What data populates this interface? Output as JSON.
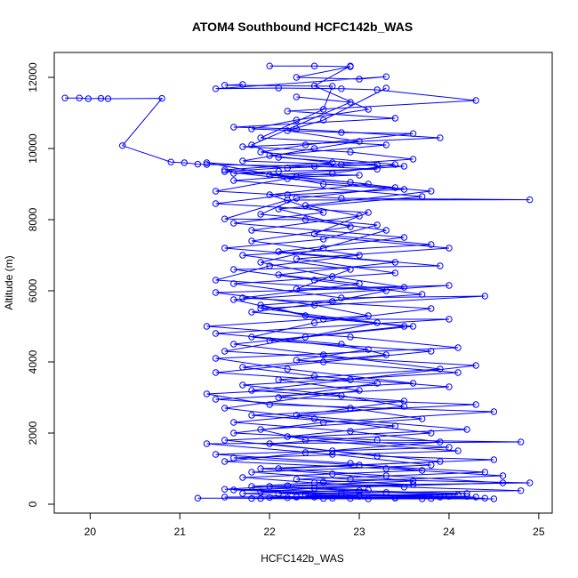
{
  "chart_data": {
    "type": "line",
    "title": "ATOM4 Southbound HCFC142b_WAS",
    "xlabel": "HCFC142b_WAS",
    "ylabel": "Altitude (m)",
    "xlim": [
      19.6,
      25.15
    ],
    "ylim": [
      -250,
      12700
    ],
    "xticks": [
      "20",
      "21",
      "22",
      "23",
      "24",
      "25"
    ],
    "yticks": [
      "0",
      "2000",
      "4000",
      "6000",
      "8000",
      "10000",
      "12000"
    ],
    "grid": false,
    "legend": "none",
    "series_color": "#0000ff",
    "marker": "open-circle",
    "series": [
      {
        "points": [
          [
            19.72,
            11420
          ],
          [
            19.88,
            11420
          ],
          [
            19.98,
            11400
          ],
          [
            20.12,
            11410
          ],
          [
            20.2,
            11400
          ],
          [
            20.8,
            11410
          ],
          [
            20.36,
            10080
          ],
          [
            20.9,
            9620
          ],
          [
            21.05,
            9600
          ],
          [
            21.2,
            9560
          ],
          [
            21.3,
            9550
          ],
          [
            22.5,
            9500
          ],
          [
            23.2,
            9420
          ],
          [
            22.1,
            9360
          ],
          [
            21.6,
            9300
          ],
          [
            23.0,
            9250
          ],
          [
            22.3,
            9200
          ],
          [
            21.4,
            8800
          ],
          [
            22.8,
            8600
          ],
          [
            24.9,
            8560
          ],
          [
            22.2,
            8550
          ],
          [
            21.5,
            8020
          ],
          [
            22.4,
            8000
          ],
          [
            23.3,
            7700
          ],
          [
            22.6,
            7200
          ],
          [
            21.9,
            6800
          ],
          [
            22.7,
            6400
          ],
          [
            23.5,
            6100
          ],
          [
            21.4,
            5950
          ],
          [
            22.5,
            5600
          ],
          [
            23.1,
            5300
          ],
          [
            21.3,
            5000
          ],
          [
            22.9,
            4700
          ],
          [
            24.1,
            4400
          ],
          [
            21.4,
            4100
          ],
          [
            22.2,
            3800
          ],
          [
            23.6,
            3400
          ],
          [
            21.3,
            3100
          ],
          [
            22.0,
            2800
          ],
          [
            24.5,
            2600
          ],
          [
            22.6,
            2300
          ],
          [
            21.6,
            2000
          ],
          [
            23.2,
            1800
          ],
          [
            24.8,
            1750
          ],
          [
            21.3,
            1700
          ],
          [
            22.7,
            1400
          ],
          [
            23.8,
            1100
          ],
          [
            21.8,
            900
          ],
          [
            22.9,
            700
          ],
          [
            24.9,
            600
          ],
          [
            22.0,
            500
          ],
          [
            23.1,
            400
          ],
          [
            21.7,
            300
          ],
          [
            22.3,
            200
          ],
          [
            23.4,
            180
          ],
          [
            24.5,
            150
          ],
          [
            21.2,
            170
          ],
          [
            22.6,
            160
          ],
          [
            23.9,
            200
          ]
        ]
      },
      {
        "points": [
          [
            22.0,
            12320
          ],
          [
            22.5,
            12320
          ],
          [
            22.9,
            12300
          ],
          [
            22.3,
            12000
          ],
          [
            23.0,
            11950
          ],
          [
            23.3,
            12020
          ],
          [
            21.4,
            11680
          ],
          [
            22.1,
            11700
          ],
          [
            22.8,
            11680
          ],
          [
            23.2,
            11650
          ],
          [
            24.3,
            11350
          ],
          [
            22.2,
            11050
          ],
          [
            23.4,
            10850
          ],
          [
            21.6,
            10600
          ],
          [
            22.3,
            10550
          ],
          [
            23.9,
            10300
          ],
          [
            21.7,
            10050
          ],
          [
            22.9,
            9900
          ],
          [
            23.6,
            9700
          ],
          [
            21.5,
            9350
          ],
          [
            22.2,
            9150
          ],
          [
            23.8,
            8800
          ],
          [
            22.4,
            8400
          ],
          [
            23.0,
            8100
          ],
          [
            21.8,
            7700
          ],
          [
            24.0,
            7200
          ],
          [
            22.3,
            6900
          ],
          [
            23.4,
            6500
          ],
          [
            21.6,
            6200
          ],
          [
            22.8,
            5800
          ],
          [
            24.4,
            5850
          ],
          [
            21.9,
            5500
          ],
          [
            23.2,
            5100
          ],
          [
            22.4,
            4700
          ],
          [
            21.5,
            4300
          ],
          [
            24.3,
            3900
          ],
          [
            22.9,
            3500
          ],
          [
            21.8,
            3200
          ],
          [
            23.5,
            2900
          ],
          [
            22.3,
            2500
          ],
          [
            24.2,
            2100
          ],
          [
            21.5,
            1800
          ],
          [
            22.7,
            1500
          ],
          [
            23.9,
            1200
          ],
          [
            22.1,
            1000
          ],
          [
            23.3,
            800
          ],
          [
            24.6,
            600
          ],
          [
            22.5,
            450
          ],
          [
            21.9,
            350
          ],
          [
            23.0,
            250
          ],
          [
            24.3,
            200
          ],
          [
            22.2,
            180
          ]
        ]
      },
      {
        "points": [
          [
            21.7,
            11800
          ],
          [
            21.5,
            11780
          ],
          [
            22.7,
            11750
          ],
          [
            22.6,
            11100
          ],
          [
            21.9,
            10300
          ],
          [
            23.3,
            10100
          ],
          [
            22.0,
            9800
          ],
          [
            22.7,
            9600
          ],
          [
            21.5,
            9400
          ],
          [
            23.1,
            9000
          ],
          [
            22.0,
            8700
          ],
          [
            22.6,
            8200
          ],
          [
            21.6,
            7900
          ],
          [
            23.5,
            7500
          ],
          [
            22.1,
            7100
          ],
          [
            23.9,
            6700
          ],
          [
            21.6,
            6600
          ],
          [
            22.5,
            6300
          ],
          [
            23.7,
            5900
          ],
          [
            21.9,
            5600
          ],
          [
            22.6,
            5200
          ],
          [
            24.0,
            5200
          ],
          [
            21.4,
            4800
          ],
          [
            22.8,
            4500
          ],
          [
            23.3,
            4200
          ],
          [
            21.7,
            3850
          ],
          [
            22.5,
            3600
          ],
          [
            24.0,
            3300
          ],
          [
            21.4,
            2950
          ],
          [
            22.9,
            2700
          ],
          [
            23.7,
            2400
          ],
          [
            21.9,
            2100
          ],
          [
            22.4,
            1800
          ],
          [
            24.1,
            1500
          ],
          [
            21.6,
            1300
          ],
          [
            23.0,
            1100
          ],
          [
            24.4,
            900
          ],
          [
            22.3,
            700
          ],
          [
            23.6,
            550
          ],
          [
            21.6,
            400
          ],
          [
            22.8,
            300
          ],
          [
            24.0,
            220
          ],
          [
            21.8,
            160
          ],
          [
            23.1,
            150
          ],
          [
            24.4,
            170
          ],
          [
            22.5,
            200
          ]
        ]
      },
      {
        "points": [
          [
            22.9,
            12320
          ],
          [
            22.5,
            11760
          ],
          [
            23.1,
            11100
          ],
          [
            22.3,
            10800
          ],
          [
            21.8,
            10550
          ],
          [
            22.8,
            10450
          ],
          [
            23.6,
            10420
          ],
          [
            22.4,
            10100
          ],
          [
            21.9,
            9900
          ],
          [
            23.4,
            9550
          ],
          [
            22.7,
            9300
          ],
          [
            21.6,
            9100
          ],
          [
            23.7,
            8650
          ],
          [
            22.1,
            8300
          ],
          [
            22.9,
            7800
          ],
          [
            21.8,
            7400
          ],
          [
            23.0,
            7000
          ],
          [
            22.0,
            6700
          ],
          [
            21.4,
            6300
          ],
          [
            23.3,
            6000
          ],
          [
            22.7,
            5700
          ],
          [
            21.8,
            5400
          ],
          [
            23.6,
            5000
          ],
          [
            22.0,
            4600
          ],
          [
            23.8,
            4300
          ],
          [
            22.6,
            4000
          ],
          [
            21.4,
            3700
          ],
          [
            23.2,
            3400
          ],
          [
            22.1,
            3000
          ],
          [
            24.3,
            2800
          ],
          [
            21.8,
            2500
          ],
          [
            23.4,
            2200
          ],
          [
            22.2,
            1900
          ],
          [
            24.0,
            1600
          ],
          [
            21.4,
            1400
          ],
          [
            22.9,
            1150
          ],
          [
            23.7,
            950
          ],
          [
            21.7,
            750
          ],
          [
            22.5,
            600
          ],
          [
            23.5,
            480
          ],
          [
            24.8,
            380
          ],
          [
            22.1,
            300
          ],
          [
            23.0,
            220
          ],
          [
            21.5,
            200
          ],
          [
            22.7,
            170
          ],
          [
            23.8,
            160
          ],
          [
            24.2,
            220
          ],
          [
            22.4,
            240
          ]
        ]
      },
      {
        "points": [
          [
            22.3,
            11450
          ],
          [
            22.9,
            11300
          ],
          [
            21.8,
            10100
          ],
          [
            22.1,
            9750
          ],
          [
            23.2,
            9550
          ],
          [
            22.2,
            9450
          ],
          [
            21.3,
            9600
          ],
          [
            22.6,
            9000
          ],
          [
            23.5,
            8850
          ],
          [
            22.2,
            8700
          ],
          [
            21.4,
            8450
          ],
          [
            23.1,
            8200
          ],
          [
            22.5,
            7600
          ],
          [
            23.8,
            7300
          ],
          [
            21.7,
            7000
          ],
          [
            22.9,
            6600
          ],
          [
            22.3,
            6050
          ],
          [
            24.0,
            6150
          ],
          [
            21.6,
            5750
          ],
          [
            22.4,
            5300
          ],
          [
            23.5,
            5000
          ],
          [
            21.6,
            4500
          ],
          [
            22.6,
            4200
          ],
          [
            23.9,
            3800
          ],
          [
            22.1,
            3500
          ],
          [
            23.0,
            3200
          ],
          [
            21.5,
            2700
          ],
          [
            22.5,
            2400
          ],
          [
            23.8,
            2000
          ],
          [
            22.0,
            1700
          ],
          [
            23.2,
            1350
          ],
          [
            24.5,
            1250
          ],
          [
            21.9,
            1000
          ],
          [
            22.7,
            850
          ],
          [
            23.6,
            650
          ],
          [
            22.2,
            520
          ],
          [
            21.5,
            420
          ],
          [
            23.3,
            330
          ],
          [
            24.1,
            270
          ],
          [
            22.0,
            190
          ],
          [
            22.9,
            160
          ],
          [
            23.7,
            150
          ]
        ]
      },
      {
        "points": [
          [
            23.3,
            11700
          ],
          [
            22.6,
            10800
          ],
          [
            22.2,
            10500
          ],
          [
            23.0,
            10200
          ],
          [
            22.5,
            10000
          ],
          [
            21.7,
            9650
          ],
          [
            22.8,
            9550
          ],
          [
            23.5,
            9500
          ],
          [
            22.0,
            9250
          ],
          [
            22.9,
            9050
          ],
          [
            23.4,
            8900
          ],
          [
            22.3,
            8600
          ],
          [
            21.9,
            8150
          ],
          [
            23.2,
            7850
          ],
          [
            22.6,
            7450
          ],
          [
            21.5,
            7200
          ],
          [
            23.4,
            6800
          ],
          [
            22.1,
            6450
          ],
          [
            23.0,
            6200
          ],
          [
            21.7,
            5800
          ],
          [
            23.8,
            5500
          ],
          [
            22.5,
            5100
          ],
          [
            21.8,
            4700
          ],
          [
            23.1,
            4350
          ],
          [
            22.3,
            4050
          ],
          [
            24.1,
            3700
          ],
          [
            21.7,
            3350
          ],
          [
            22.8,
            3050
          ],
          [
            23.5,
            2750
          ],
          [
            21.6,
            2300
          ],
          [
            22.9,
            2050
          ],
          [
            23.9,
            1750
          ],
          [
            22.4,
            1450
          ],
          [
            21.5,
            1200
          ],
          [
            23.3,
            1000
          ],
          [
            24.6,
            800
          ],
          [
            22.6,
            620
          ],
          [
            21.8,
            500
          ],
          [
            23.0,
            380
          ],
          [
            24.2,
            300
          ],
          [
            22.3,
            210
          ],
          [
            23.4,
            170
          ],
          [
            21.9,
            160
          ]
        ]
      }
    ]
  }
}
